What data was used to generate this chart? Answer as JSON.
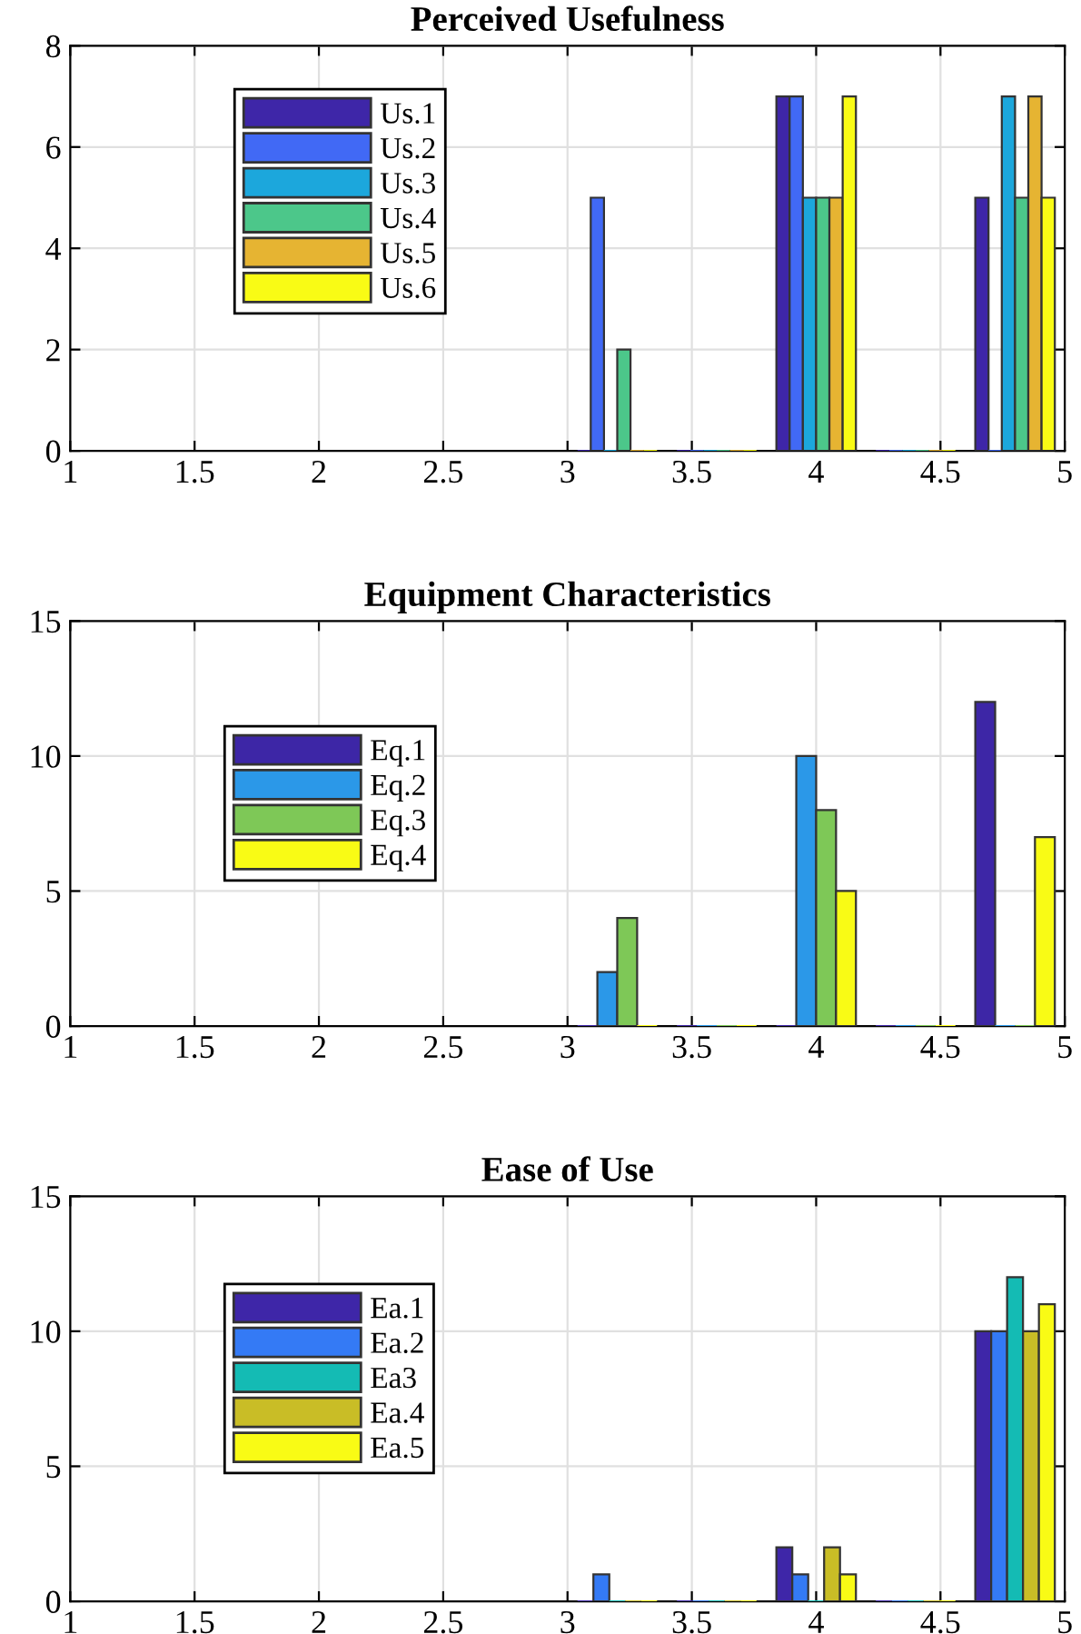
{
  "chart_data": [
    {
      "type": "bar",
      "title": "Perceived Usefulness",
      "x": [
        3.2,
        3.6,
        4.0,
        4.4,
        4.8
      ],
      "xlim": [
        1,
        5
      ],
      "xticks": [
        1,
        1.5,
        2,
        2.5,
        3,
        3.5,
        4,
        4.5,
        5
      ],
      "ylim": [
        0,
        8
      ],
      "yticks": [
        0,
        2,
        4,
        6,
        8
      ],
      "grid": true,
      "legend": "top left",
      "series": [
        {
          "name": "Us.1",
          "color": "#3e26a8",
          "values": [
            0,
            0,
            7,
            0,
            5
          ]
        },
        {
          "name": "Us.2",
          "color": "#4169f5",
          "values": [
            5,
            0,
            7,
            0,
            0
          ]
        },
        {
          "name": "Us.3",
          "color": "#1ca7dc",
          "values": [
            0,
            0,
            5,
            0,
            7
          ]
        },
        {
          "name": "Us.4",
          "color": "#4cc78a",
          "values": [
            2,
            0,
            5,
            0,
            5
          ]
        },
        {
          "name": "Us.5",
          "color": "#e6b432",
          "values": [
            0,
            0,
            5,
            0,
            7
          ]
        },
        {
          "name": "Us.6",
          "color": "#f9fb15",
          "values": [
            0,
            0,
            7,
            0,
            5
          ]
        }
      ]
    },
    {
      "type": "bar",
      "title": "Equipment Characteristics",
      "x": [
        3.2,
        3.6,
        4.0,
        4.4,
        4.8
      ],
      "xlim": [
        1,
        5
      ],
      "xticks": [
        1,
        1.5,
        2,
        2.5,
        3,
        3.5,
        4,
        4.5,
        5
      ],
      "ylim": [
        0,
        15
      ],
      "yticks": [
        0,
        5,
        10,
        15
      ],
      "grid": true,
      "legend": "left",
      "series": [
        {
          "name": "Eq.1",
          "color": "#3d26a6",
          "values": [
            0,
            0,
            0,
            0,
            12
          ]
        },
        {
          "name": "Eq.2",
          "color": "#2b98e8",
          "values": [
            2,
            0,
            10,
            0,
            0
          ]
        },
        {
          "name": "Eq.3",
          "color": "#7ec857",
          "values": [
            4,
            0,
            8,
            0,
            0
          ]
        },
        {
          "name": "Eq.4",
          "color": "#f9fb15",
          "values": [
            0,
            0,
            5,
            0,
            7
          ]
        }
      ]
    },
    {
      "type": "bar",
      "title": "Ease of Use",
      "x": [
        3.2,
        3.6,
        4.0,
        4.4,
        4.8
      ],
      "xlim": [
        1,
        5
      ],
      "xticks": [
        1,
        1.5,
        2,
        2.5,
        3,
        3.5,
        4,
        4.5,
        5
      ],
      "ylim": [
        0,
        15
      ],
      "yticks": [
        0,
        5,
        10,
        15
      ],
      "grid": true,
      "legend": "left",
      "series": [
        {
          "name": "Ea.1",
          "color": "#3e26a8",
          "values": [
            0,
            0,
            2,
            0,
            10
          ]
        },
        {
          "name": "Ea.2",
          "color": "#347af5",
          "values": [
            1,
            0,
            1,
            0,
            10
          ]
        },
        {
          "name": "Ea3",
          "color": "#14bbb4",
          "values": [
            0,
            0,
            0,
            0,
            12
          ]
        },
        {
          "name": "Ea.4",
          "color": "#c9bd26",
          "values": [
            0,
            0,
            2,
            0,
            10
          ]
        },
        {
          "name": "Ea.5",
          "color": "#f9fb15",
          "values": [
            0,
            0,
            1,
            0,
            11
          ]
        }
      ]
    }
  ]
}
